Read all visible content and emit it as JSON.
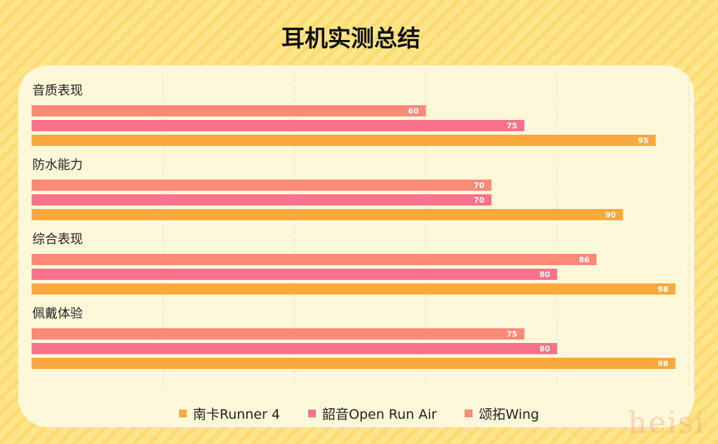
{
  "chart_data": {
    "type": "bar",
    "title": "耳机实测总结",
    "categories": [
      "音质表现",
      "防水能力",
      "综合表现",
      "佩戴体验"
    ],
    "series": [
      {
        "name": "颂拓Wing",
        "color": "#fd8a78",
        "values": [
          60,
          70,
          86,
          75
        ]
      },
      {
        "name": "韶音Open Run Air",
        "color": "#f9718a",
        "values": [
          75,
          70,
          80,
          80
        ]
      },
      {
        "name": "南卡Runner 4",
        "color": "#fba93e",
        "values": [
          95,
          90,
          98,
          98
        ]
      }
    ],
    "xlim": [
      0,
      100
    ],
    "grid": true,
    "legend": "bottom",
    "legend_order": [
      "南卡Runner 4",
      "韶音Open Run Air",
      "颂拓Wing"
    ]
  },
  "watermark": "heisi"
}
